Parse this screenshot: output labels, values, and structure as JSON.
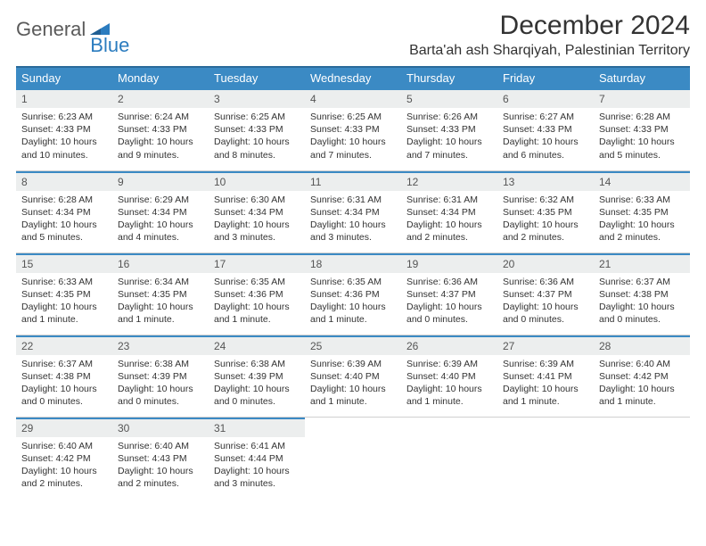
{
  "brand": {
    "part1": "General",
    "part2": "Blue"
  },
  "title": "December 2024",
  "location": "Barta'ah ash Sharqiyah, Palestinian Territory",
  "colors": {
    "header_bg": "#3b8ac4",
    "header_text": "#ffffff",
    "daynum_bg": "#eceeee",
    "daynum_border": "#3b8ac4",
    "logo_gray": "#5a5a5a",
    "logo_blue": "#2b7cbf"
  },
  "weekday_labels": [
    "Sunday",
    "Monday",
    "Tuesday",
    "Wednesday",
    "Thursday",
    "Friday",
    "Saturday"
  ],
  "days": [
    {
      "n": "1",
      "sunrise": "Sunrise: 6:23 AM",
      "sunset": "Sunset: 4:33 PM",
      "daylight": "Daylight: 10 hours and 10 minutes."
    },
    {
      "n": "2",
      "sunrise": "Sunrise: 6:24 AM",
      "sunset": "Sunset: 4:33 PM",
      "daylight": "Daylight: 10 hours and 9 minutes."
    },
    {
      "n": "3",
      "sunrise": "Sunrise: 6:25 AM",
      "sunset": "Sunset: 4:33 PM",
      "daylight": "Daylight: 10 hours and 8 minutes."
    },
    {
      "n": "4",
      "sunrise": "Sunrise: 6:25 AM",
      "sunset": "Sunset: 4:33 PM",
      "daylight": "Daylight: 10 hours and 7 minutes."
    },
    {
      "n": "5",
      "sunrise": "Sunrise: 6:26 AM",
      "sunset": "Sunset: 4:33 PM",
      "daylight": "Daylight: 10 hours and 7 minutes."
    },
    {
      "n": "6",
      "sunrise": "Sunrise: 6:27 AM",
      "sunset": "Sunset: 4:33 PM",
      "daylight": "Daylight: 10 hours and 6 minutes."
    },
    {
      "n": "7",
      "sunrise": "Sunrise: 6:28 AM",
      "sunset": "Sunset: 4:33 PM",
      "daylight": "Daylight: 10 hours and 5 minutes."
    },
    {
      "n": "8",
      "sunrise": "Sunrise: 6:28 AM",
      "sunset": "Sunset: 4:34 PM",
      "daylight": "Daylight: 10 hours and 5 minutes."
    },
    {
      "n": "9",
      "sunrise": "Sunrise: 6:29 AM",
      "sunset": "Sunset: 4:34 PM",
      "daylight": "Daylight: 10 hours and 4 minutes."
    },
    {
      "n": "10",
      "sunrise": "Sunrise: 6:30 AM",
      "sunset": "Sunset: 4:34 PM",
      "daylight": "Daylight: 10 hours and 3 minutes."
    },
    {
      "n": "11",
      "sunrise": "Sunrise: 6:31 AM",
      "sunset": "Sunset: 4:34 PM",
      "daylight": "Daylight: 10 hours and 3 minutes."
    },
    {
      "n": "12",
      "sunrise": "Sunrise: 6:31 AM",
      "sunset": "Sunset: 4:34 PM",
      "daylight": "Daylight: 10 hours and 2 minutes."
    },
    {
      "n": "13",
      "sunrise": "Sunrise: 6:32 AM",
      "sunset": "Sunset: 4:35 PM",
      "daylight": "Daylight: 10 hours and 2 minutes."
    },
    {
      "n": "14",
      "sunrise": "Sunrise: 6:33 AM",
      "sunset": "Sunset: 4:35 PM",
      "daylight": "Daylight: 10 hours and 2 minutes."
    },
    {
      "n": "15",
      "sunrise": "Sunrise: 6:33 AM",
      "sunset": "Sunset: 4:35 PM",
      "daylight": "Daylight: 10 hours and 1 minute."
    },
    {
      "n": "16",
      "sunrise": "Sunrise: 6:34 AM",
      "sunset": "Sunset: 4:35 PM",
      "daylight": "Daylight: 10 hours and 1 minute."
    },
    {
      "n": "17",
      "sunrise": "Sunrise: 6:35 AM",
      "sunset": "Sunset: 4:36 PM",
      "daylight": "Daylight: 10 hours and 1 minute."
    },
    {
      "n": "18",
      "sunrise": "Sunrise: 6:35 AM",
      "sunset": "Sunset: 4:36 PM",
      "daylight": "Daylight: 10 hours and 1 minute."
    },
    {
      "n": "19",
      "sunrise": "Sunrise: 6:36 AM",
      "sunset": "Sunset: 4:37 PM",
      "daylight": "Daylight: 10 hours and 0 minutes."
    },
    {
      "n": "20",
      "sunrise": "Sunrise: 6:36 AM",
      "sunset": "Sunset: 4:37 PM",
      "daylight": "Daylight: 10 hours and 0 minutes."
    },
    {
      "n": "21",
      "sunrise": "Sunrise: 6:37 AM",
      "sunset": "Sunset: 4:38 PM",
      "daylight": "Daylight: 10 hours and 0 minutes."
    },
    {
      "n": "22",
      "sunrise": "Sunrise: 6:37 AM",
      "sunset": "Sunset: 4:38 PM",
      "daylight": "Daylight: 10 hours and 0 minutes."
    },
    {
      "n": "23",
      "sunrise": "Sunrise: 6:38 AM",
      "sunset": "Sunset: 4:39 PM",
      "daylight": "Daylight: 10 hours and 0 minutes."
    },
    {
      "n": "24",
      "sunrise": "Sunrise: 6:38 AM",
      "sunset": "Sunset: 4:39 PM",
      "daylight": "Daylight: 10 hours and 0 minutes."
    },
    {
      "n": "25",
      "sunrise": "Sunrise: 6:39 AM",
      "sunset": "Sunset: 4:40 PM",
      "daylight": "Daylight: 10 hours and 1 minute."
    },
    {
      "n": "26",
      "sunrise": "Sunrise: 6:39 AM",
      "sunset": "Sunset: 4:40 PM",
      "daylight": "Daylight: 10 hours and 1 minute."
    },
    {
      "n": "27",
      "sunrise": "Sunrise: 6:39 AM",
      "sunset": "Sunset: 4:41 PM",
      "daylight": "Daylight: 10 hours and 1 minute."
    },
    {
      "n": "28",
      "sunrise": "Sunrise: 6:40 AM",
      "sunset": "Sunset: 4:42 PM",
      "daylight": "Daylight: 10 hours and 1 minute."
    },
    {
      "n": "29",
      "sunrise": "Sunrise: 6:40 AM",
      "sunset": "Sunset: 4:42 PM",
      "daylight": "Daylight: 10 hours and 2 minutes."
    },
    {
      "n": "30",
      "sunrise": "Sunrise: 6:40 AM",
      "sunset": "Sunset: 4:43 PM",
      "daylight": "Daylight: 10 hours and 2 minutes."
    },
    {
      "n": "31",
      "sunrise": "Sunrise: 6:41 AM",
      "sunset": "Sunset: 4:44 PM",
      "daylight": "Daylight: 10 hours and 3 minutes."
    }
  ]
}
